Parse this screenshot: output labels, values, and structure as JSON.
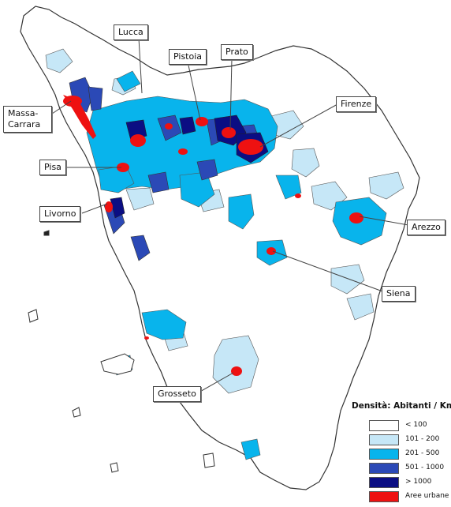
{
  "map": {
    "region": "Toscana",
    "colors": {
      "land_low": "#ffffff",
      "density_101_200": "#c6e7f7",
      "density_201_500": "#08b4ec",
      "density_501_1000": "#2b49b6",
      "density_gt_1000": "#0b0e83",
      "urban": "#ee1111",
      "border": "#333333"
    },
    "labels": {
      "lucca": "Lucca",
      "pistoia": "Pistoia",
      "prato": "Prato",
      "firenze": "Firenze",
      "massa_carrara": "Massa-\nCarrara",
      "pisa": "Pisa",
      "livorno": "Livorno",
      "arezzo": "Arezzo",
      "siena": "Siena",
      "grosseto": "Grosseto"
    }
  },
  "legend": {
    "title": "Densità: Abitanti / Kmq",
    "items": [
      {
        "label": "< 100",
        "color": "#ffffff"
      },
      {
        "label": "101 - 200",
        "color": "#c6e7f7"
      },
      {
        "label": "201 - 500",
        "color": "#08b4ec"
      },
      {
        "label": "501 - 1000",
        "color": "#2b49b6"
      },
      {
        "label": "> 1000",
        "color": "#0b0e83"
      },
      {
        "label": "Aree urbane",
        "color": "#ee1111"
      }
    ]
  }
}
